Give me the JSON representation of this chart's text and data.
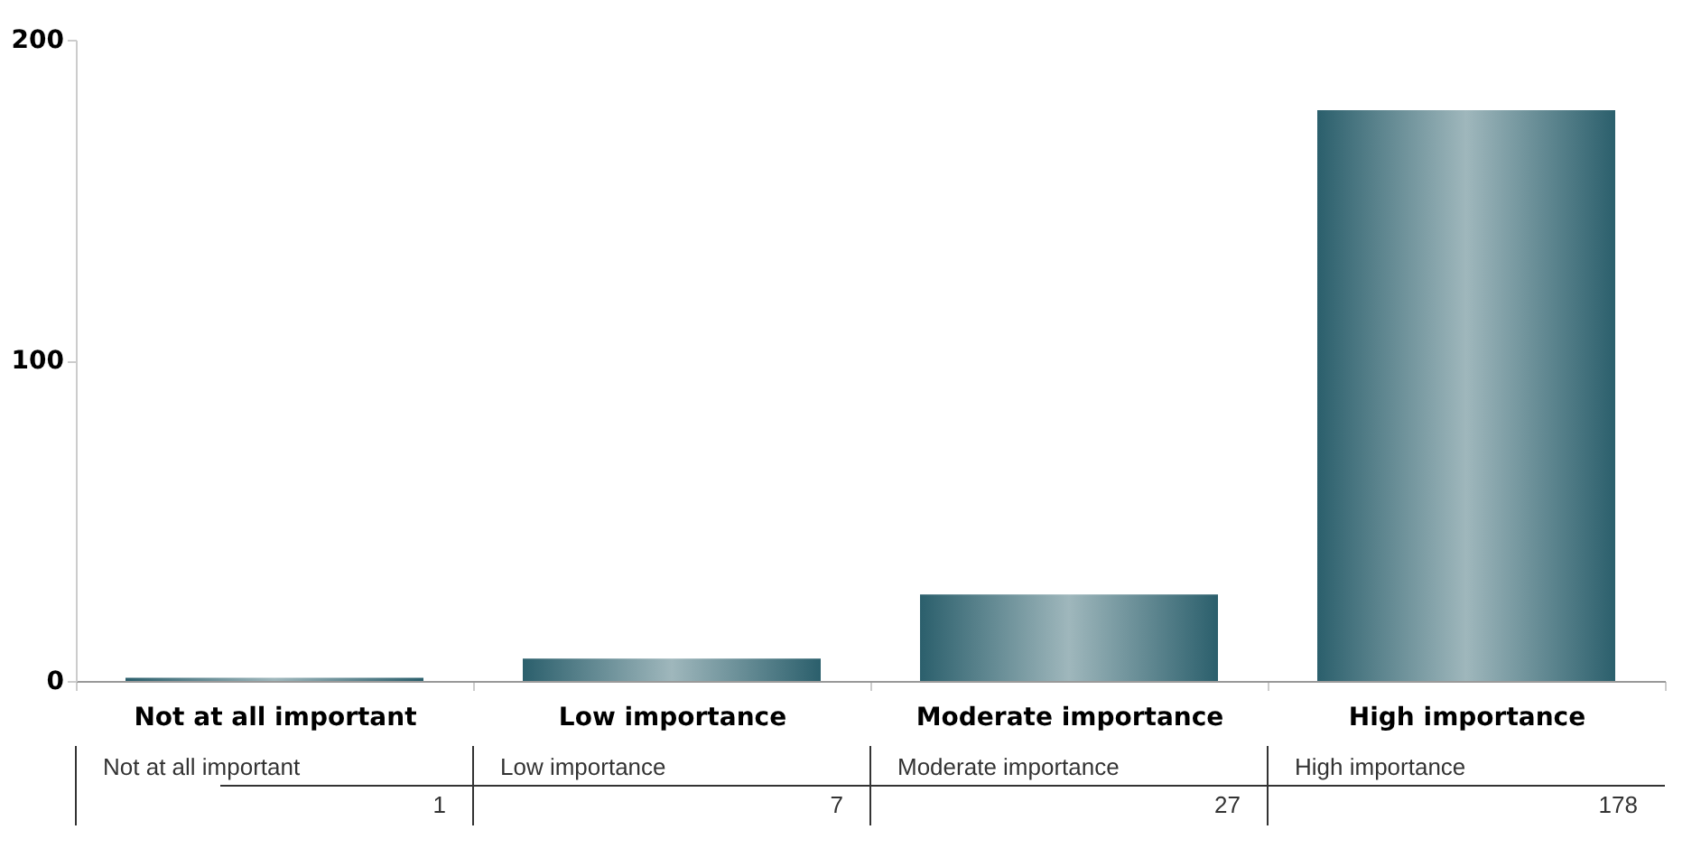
{
  "chart_data": {
    "type": "bar",
    "categories": [
      "Not at all important",
      "Low importance",
      "Moderate importance",
      "High importance"
    ],
    "values": [
      1,
      7,
      27,
      178
    ],
    "color": "#2b5f6c",
    "ylim": [
      0,
      200
    ],
    "yticks": [
      0,
      100,
      200
    ],
    "grid": false,
    "data_labels": true
  }
}
